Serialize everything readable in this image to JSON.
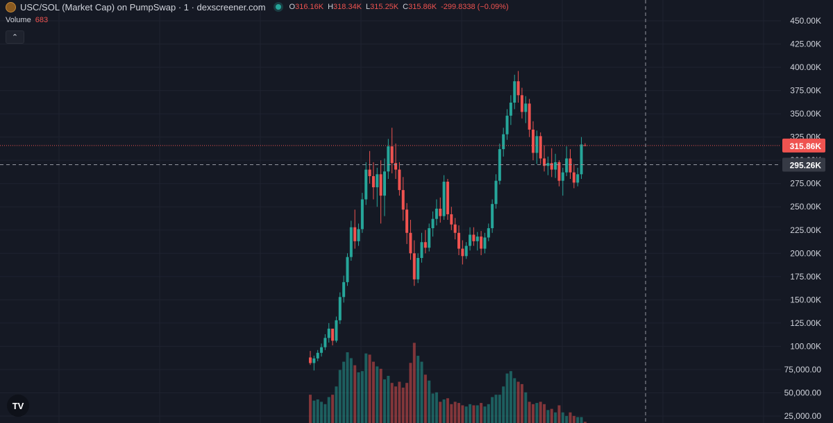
{
  "header": {
    "title": "USC/SOL (Market Cap) on PumpSwap · 1 · dexscreener.com",
    "ohlc": {
      "o_label": "O",
      "o": "316.16K",
      "h_label": "H",
      "h": "318.34K",
      "l_label": "L",
      "l": "315.25K",
      "c_label": "C",
      "c": "315.86K",
      "change": "-299.8338 (−0.09%)"
    }
  },
  "volume": {
    "label": "Volume",
    "value": "683"
  },
  "collapse_button": {
    "icon": "chevron-up-icon",
    "glyph": "⌃"
  },
  "tv_logo": {
    "icon": "tradingview-logo-icon",
    "glyph": "TV"
  },
  "colors": {
    "background": "#151924",
    "up": "#26a69a",
    "down": "#ef5350",
    "grid": "#1f2330",
    "price_line": "#ef5350"
  },
  "chart_data": {
    "type": "candlestick",
    "price_axis": {
      "ticks": [
        "450.00K",
        "425.00K",
        "400.00K",
        "375.00K",
        "350.00K",
        "325.00K",
        "300.00K",
        "275.00K",
        "250.00K",
        "225.00K",
        "200.00K",
        "175.00K",
        "150.00K",
        "125.00K",
        "100.00K",
        "75,000.00",
        "50,000.00",
        "25,000.00"
      ],
      "tick_values": [
        450000,
        425000,
        400000,
        375000,
        350000,
        325000,
        300000,
        275000,
        250000,
        225000,
        200000,
        175000,
        150000,
        125000,
        100000,
        75000,
        50000,
        25000
      ]
    },
    "last_price": {
      "label": "315.86K",
      "value": 315860
    },
    "crosshair_price": {
      "label": "295.26K",
      "value": 295260
    },
    "candles": [
      [
        88000,
        95000,
        80000,
        82000
      ],
      [
        82000,
        90000,
        74000,
        87000
      ],
      [
        87000,
        96000,
        84000,
        93000
      ],
      [
        93000,
        103000,
        89000,
        99000
      ],
      [
        99000,
        113000,
        96000,
        109000
      ],
      [
        109000,
        125000,
        104000,
        119000
      ],
      [
        119000,
        118000,
        101000,
        106000
      ],
      [
        106000,
        132000,
        104000,
        128000
      ],
      [
        128000,
        158000,
        124000,
        153000
      ],
      [
        153000,
        176000,
        147000,
        169000
      ],
      [
        169000,
        200000,
        165000,
        196000
      ],
      [
        196000,
        235000,
        192000,
        228000
      ],
      [
        228000,
        247000,
        205000,
        213000
      ],
      [
        213000,
        232000,
        208000,
        226000
      ],
      [
        226000,
        265000,
        222000,
        258000
      ],
      [
        258000,
        298000,
        252000,
        290000
      ],
      [
        290000,
        310000,
        275000,
        283000
      ],
      [
        283000,
        298000,
        258000,
        271000
      ],
      [
        271000,
        292000,
        250000,
        285000
      ],
      [
        285000,
        300000,
        232000,
        262000
      ],
      [
        262000,
        302000,
        240000,
        288000
      ],
      [
        288000,
        323000,
        280000,
        315000
      ],
      [
        315000,
        335000,
        286000,
        297000
      ],
      [
        297000,
        318000,
        280000,
        290000
      ],
      [
        290000,
        298000,
        262000,
        268000
      ],
      [
        268000,
        282000,
        235000,
        247000
      ],
      [
        247000,
        254000,
        210000,
        222000
      ],
      [
        222000,
        236000,
        193000,
        200000
      ],
      [
        200000,
        214000,
        165000,
        172000
      ],
      [
        172000,
        200000,
        168000,
        195000
      ],
      [
        195000,
        222000,
        190000,
        212000
      ],
      [
        212000,
        225000,
        200000,
        206000
      ],
      [
        206000,
        232000,
        202000,
        227000
      ],
      [
        227000,
        245000,
        218000,
        237000
      ],
      [
        237000,
        258000,
        230000,
        248000
      ],
      [
        248000,
        260000,
        233000,
        240000
      ],
      [
        240000,
        284000,
        236000,
        277000
      ],
      [
        277000,
        280000,
        236000,
        242000
      ],
      [
        242000,
        250000,
        225000,
        231000
      ],
      [
        231000,
        238000,
        215000,
        222000
      ],
      [
        222000,
        230000,
        198000,
        205000
      ],
      [
        205000,
        214000,
        188000,
        197000
      ],
      [
        197000,
        212000,
        194000,
        208000
      ],
      [
        208000,
        228000,
        203000,
        220000
      ],
      [
        220000,
        228000,
        208000,
        213000
      ],
      [
        213000,
        223000,
        203000,
        218000
      ],
      [
        218000,
        224000,
        198000,
        205000
      ],
      [
        205000,
        222000,
        200000,
        217000
      ],
      [
        217000,
        232000,
        213000,
        227000
      ],
      [
        227000,
        258000,
        222000,
        253000
      ],
      [
        253000,
        285000,
        248000,
        278000
      ],
      [
        278000,
        318000,
        274000,
        312000
      ],
      [
        312000,
        335000,
        304000,
        328000
      ],
      [
        328000,
        355000,
        322000,
        348000
      ],
      [
        348000,
        370000,
        338000,
        362000
      ],
      [
        362000,
        392000,
        355000,
        385000
      ],
      [
        385000,
        396000,
        362000,
        370000
      ],
      [
        370000,
        378000,
        345000,
        352000
      ],
      [
        352000,
        369000,
        340000,
        361000
      ],
      [
        361000,
        366000,
        325000,
        333000
      ],
      [
        333000,
        342000,
        300000,
        308000
      ],
      [
        308000,
        332000,
        296000,
        326000
      ],
      [
        326000,
        330000,
        296000,
        302000
      ],
      [
        302000,
        316000,
        288000,
        294000
      ],
      [
        294000,
        304000,
        284000,
        297000
      ],
      [
        297000,
        313000,
        282000,
        290000
      ],
      [
        290000,
        307000,
        281000,
        298000
      ],
      [
        298000,
        300000,
        272000,
        278000
      ],
      [
        278000,
        292000,
        262000,
        287000
      ],
      [
        287000,
        315000,
        283000,
        302000
      ],
      [
        302000,
        312000,
        280000,
        287000
      ],
      [
        287000,
        296000,
        270000,
        276000
      ],
      [
        276000,
        292000,
        272000,
        285000
      ],
      [
        285000,
        325000,
        280000,
        317000
      ],
      [
        316160,
        318340,
        315250,
        315860
      ]
    ],
    "volumes": [
      0.24,
      0.19,
      0.2,
      0.18,
      0.16,
      0.22,
      0.24,
      0.31,
      0.45,
      0.52,
      0.6,
      0.55,
      0.49,
      0.43,
      0.44,
      0.59,
      0.58,
      0.52,
      0.48,
      0.46,
      0.37,
      0.4,
      0.34,
      0.31,
      0.35,
      0.3,
      0.34,
      0.51,
      0.68,
      0.57,
      0.52,
      0.41,
      0.36,
      0.25,
      0.26,
      0.18,
      0.2,
      0.21,
      0.16,
      0.18,
      0.17,
      0.15,
      0.14,
      0.16,
      0.15,
      0.15,
      0.17,
      0.14,
      0.16,
      0.22,
      0.24,
      0.24,
      0.31,
      0.42,
      0.44,
      0.38,
      0.35,
      0.33,
      0.26,
      0.18,
      0.16,
      0.17,
      0.18,
      0.16,
      0.11,
      0.12,
      0.09,
      0.15,
      0.09,
      0.06,
      0.09,
      0.06,
      0.05,
      0.05,
      0.01
    ]
  }
}
